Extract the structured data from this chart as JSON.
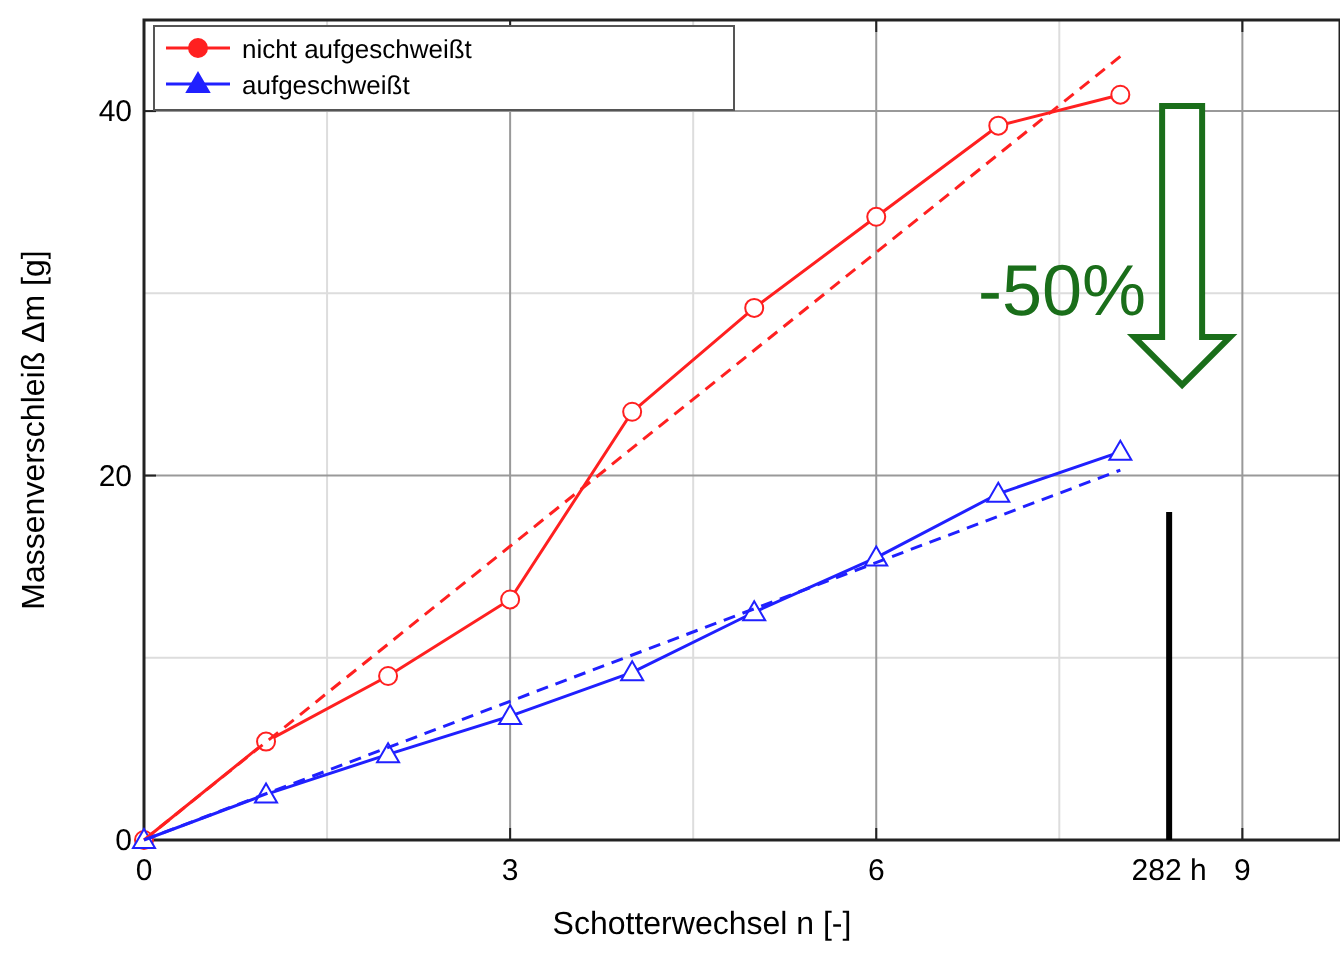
{
  "chart_data": {
    "type": "line",
    "xlabel": "Schotterwechsel n [-]",
    "ylabel": "Massenverschleiß Δm [g]",
    "xlim": [
      0,
      9.8
    ],
    "xticks": [
      0,
      3,
      6,
      9
    ],
    "ref_lines": [
      {
        "axis": "x",
        "value": 8.4,
        "label": "282 h",
        "color": "#000000"
      }
    ],
    "ylim": [
      0,
      45
    ],
    "yticks": [
      0,
      20,
      40
    ],
    "grid": true,
    "legend": "top left",
    "series": [
      {
        "name": "nicht aufgeschweißt",
        "color": "#ff2020",
        "marker": "circle",
        "x": [
          0,
          1,
          2,
          3,
          4,
          5,
          6,
          7,
          8
        ],
        "values": [
          0,
          5.4,
          9,
          13.2,
          23.5,
          29.2,
          34.2,
          39.2,
          40.9
        ]
      },
      {
        "name": "aufgeschweißt",
        "color": "#2020ff",
        "marker": "triangle",
        "x": [
          0,
          1,
          2,
          3,
          4,
          5,
          6,
          7,
          8
        ],
        "values": [
          0,
          2.5,
          4.7,
          6.8,
          9.2,
          12.5,
          15.5,
          19,
          21.3
        ]
      },
      {
        "color": "#ff2020",
        "line_style": "dashed",
        "marker": "none",
        "x": [
          0,
          8
        ],
        "values": [
          0,
          43
        ]
      },
      {
        "color": "#2020ff",
        "line_style": "dashed",
        "marker": "none",
        "x": [
          0,
          8
        ],
        "values": [
          0,
          20.3
        ]
      }
    ],
    "annotations": [
      "-50%"
    ]
  }
}
